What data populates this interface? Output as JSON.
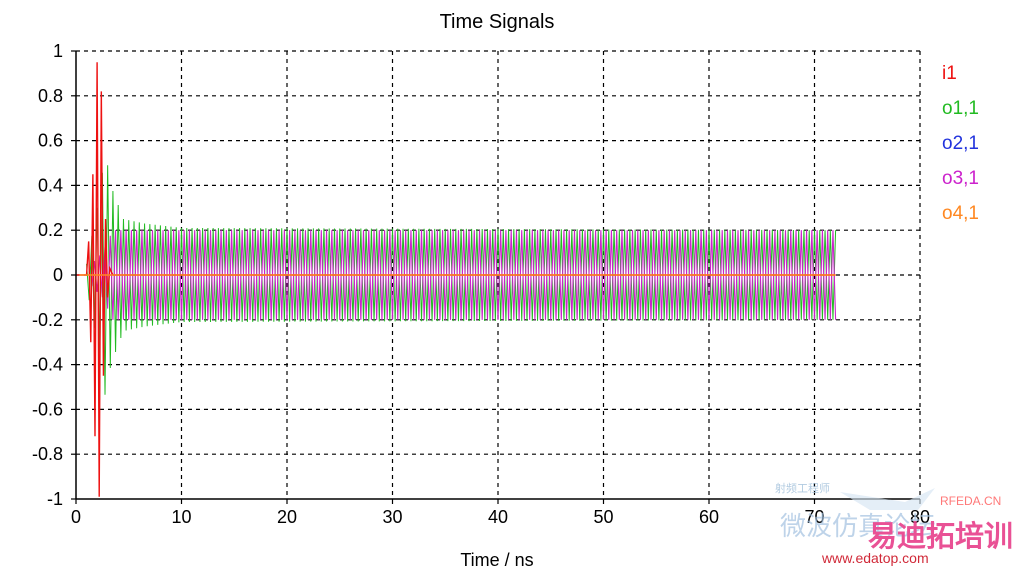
{
  "chart_data": {
    "type": "line",
    "title": "Time Signals",
    "xlabel": "Time / ns",
    "ylabel": "",
    "xlim": [
      0,
      80
    ],
    "ylim": [
      -1,
      1
    ],
    "grid": true,
    "legend_position": "right",
    "x_ticks": [
      "0",
      "10",
      "20",
      "30",
      "40",
      "50",
      "60",
      "70",
      "80"
    ],
    "y_ticks": [
      "1",
      "0.8",
      "0.6",
      "0.4",
      "0.2",
      "0",
      "-0.2",
      "-0.4",
      "-0.6",
      "-0.8",
      "-1"
    ],
    "series": [
      {
        "name": "i1",
        "color": "#ee1111",
        "points": [
          [
            0,
            0
          ],
          [
            1,
            0.0
          ],
          [
            1.2,
            0.15
          ],
          [
            1.4,
            -0.3
          ],
          [
            1.6,
            0.45
          ],
          [
            1.8,
            -0.72
          ],
          [
            2.0,
            0.95
          ],
          [
            2.2,
            -0.99
          ],
          [
            2.4,
            0.82
          ],
          [
            2.6,
            -0.45
          ],
          [
            2.8,
            0.25
          ],
          [
            3.0,
            -0.1
          ],
          [
            3.2,
            0.03
          ],
          [
            3.5,
            0
          ],
          [
            72,
            0
          ]
        ]
      },
      {
        "name": "o1,1",
        "color": "#22bb22",
        "envelope": [
          [
            1.0,
            0.05
          ],
          [
            2.0,
            0.3
          ],
          [
            2.8,
            0.55
          ],
          [
            3.3,
            0.4
          ],
          [
            4.5,
            0.25
          ],
          [
            6.5,
            0.23
          ],
          [
            10,
            0.21
          ],
          [
            72,
            0.2
          ]
        ]
      },
      {
        "name": "o2,1",
        "color": "#2233dd",
        "values": [
          0
        ]
      },
      {
        "name": "o3,1",
        "color": "#cc22cc",
        "envelope": [
          [
            1.5,
            0.05
          ],
          [
            2.5,
            0.1
          ],
          [
            3.5,
            0.2
          ],
          [
            72,
            0.2
          ]
        ]
      },
      {
        "name": "o4,1",
        "color": "#ff8822",
        "values": [
          0
        ]
      }
    ]
  },
  "watermark": {
    "site_text": "RFEDA.CN",
    "cn_line1": "射频工程师",
    "cn_line2": "微波仿真论坛",
    "brand": "易迪拓培训",
    "url": "www.edatop.com"
  }
}
